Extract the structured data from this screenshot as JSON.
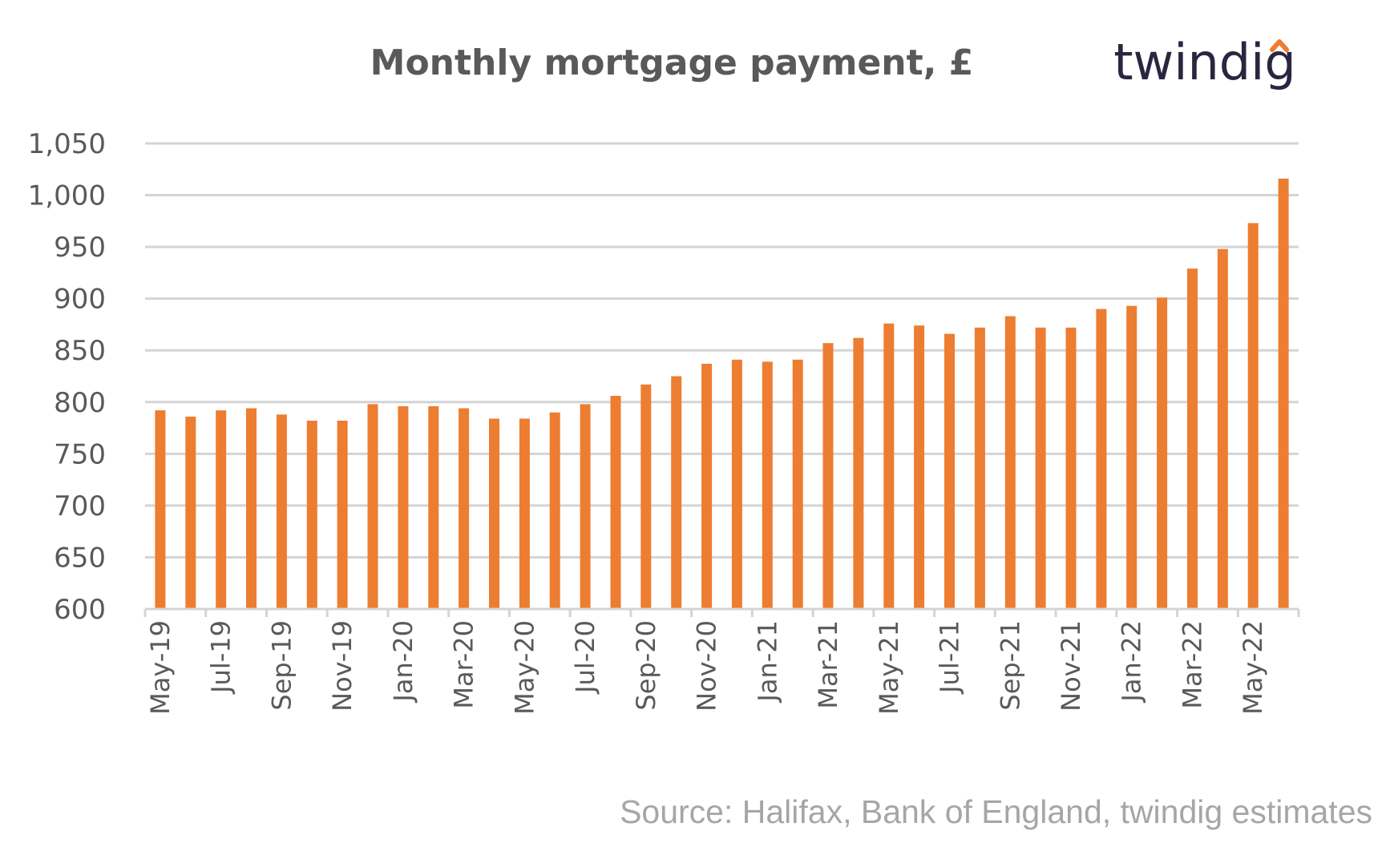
{
  "colors": {
    "bar": "#ED7D31",
    "grid": "#D4D4D4",
    "axis": "#D4D4D4",
    "tick_text": "#595959",
    "title_text": "#595959",
    "logo_text": "#2B2540",
    "logo_accent": "#ED7D31",
    "source_text": "#A6A6A6"
  },
  "logo": {
    "text": "twindig",
    "accent_icon": "caret-up-icon"
  },
  "source": "Source: Halifax, Bank of England, twindig estimates",
  "chart_data": {
    "type": "bar",
    "title": "Monthly mortgage payment, £",
    "xlabel": "",
    "ylabel": "",
    "ylim": [
      600,
      1050
    ],
    "yticks": [
      600,
      650,
      700,
      750,
      800,
      850,
      900,
      950,
      1000,
      1050
    ],
    "ytick_labels": [
      "600",
      "650",
      "700",
      "750",
      "800",
      "850",
      "900",
      "950",
      "1,000",
      "1,050"
    ],
    "grid": true,
    "legend": "none",
    "categories": [
      "May-19",
      "Jun-19",
      "Jul-19",
      "Aug-19",
      "Sep-19",
      "Oct-19",
      "Nov-19",
      "Dec-19",
      "Jan-20",
      "Feb-20",
      "Mar-20",
      "Apr-20",
      "May-20",
      "Jun-20",
      "Jul-20",
      "Aug-20",
      "Sep-20",
      "Oct-20",
      "Nov-20",
      "Dec-20",
      "Jan-21",
      "Feb-21",
      "Mar-21",
      "Apr-21",
      "May-21",
      "Jun-21",
      "Jul-21",
      "Aug-21",
      "Sep-21",
      "Oct-21",
      "Nov-21",
      "Dec-21",
      "Jan-22",
      "Feb-22",
      "Mar-22",
      "Apr-22",
      "May-22",
      "Jun-22"
    ],
    "xtick_labels": [
      "May-19",
      "Jul-19",
      "Sep-19",
      "Nov-19",
      "Jan-20",
      "Mar-20",
      "May-20",
      "Jul-20",
      "Sep-20",
      "Nov-20",
      "Jan-21",
      "Mar-21",
      "May-21",
      "Jul-21",
      "Sep-21",
      "Nov-21",
      "Jan-22",
      "Mar-22",
      "May-22"
    ],
    "values": [
      792,
      786,
      792,
      794,
      788,
      782,
      782,
      798,
      796,
      796,
      794,
      784,
      784,
      790,
      798,
      806,
      817,
      825,
      837,
      841,
      839,
      841,
      857,
      862,
      876,
      874,
      866,
      872,
      883,
      872,
      872,
      890,
      893,
      901,
      929,
      948,
      973,
      1016
    ]
  }
}
